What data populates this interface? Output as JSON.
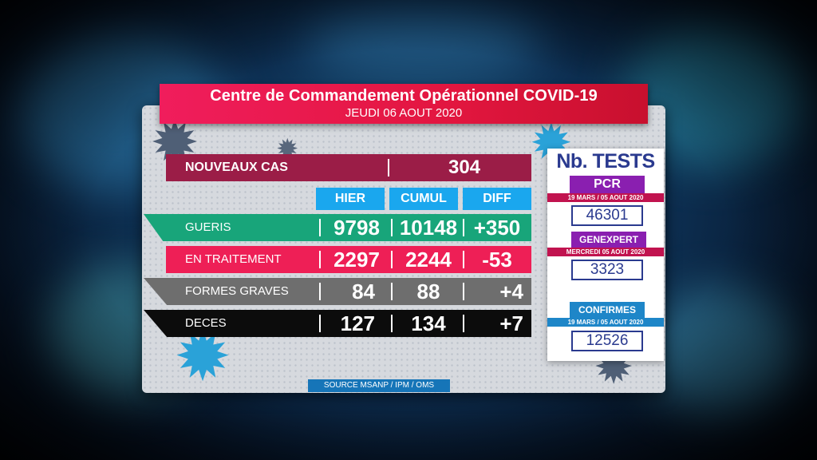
{
  "header": {
    "title": "Centre de Commandement Opérationnel COVID-19",
    "date": "JEUDI 06 AOUT 2020"
  },
  "nouveaux_cas": {
    "label": "NOUVEAUX CAS",
    "value": "304"
  },
  "columns": [
    "HIER",
    "CUMUL",
    "DIFF"
  ],
  "rows": [
    {
      "label": "GUERIS",
      "hier": "9798",
      "cumul": "10148",
      "diff": "+350",
      "color": "#18a57a"
    },
    {
      "label": "EN TRAITEMENT",
      "hier": "2297",
      "cumul": "2244",
      "diff": "-53",
      "color": "#ee1f56"
    },
    {
      "label": "FORMES GRAVES",
      "hier": "84",
      "cumul": "88",
      "diff": "+4",
      "color": "#6e6e6e"
    },
    {
      "label": "DECES",
      "hier": "127",
      "cumul": "134",
      "diff": "+7",
      "color": "#0c0c0c"
    }
  ],
  "source": "SOURCE MSANP / IPM / OMS",
  "tests": {
    "title": "Nb. TESTS",
    "pcr": {
      "label": "PCR",
      "period": "19 MARS  /  05 AOUT 2020",
      "value": "46301"
    },
    "genexpert": {
      "label": "GENEXPERT",
      "period": "MERCREDI  05 AOUT 2020",
      "value": "3323"
    },
    "confirmes": {
      "label": "CONFIRMES",
      "period": "19 MARS  /  05 AOUT 2020",
      "value": "12526"
    }
  },
  "icons": [
    "virus-icon"
  ]
}
